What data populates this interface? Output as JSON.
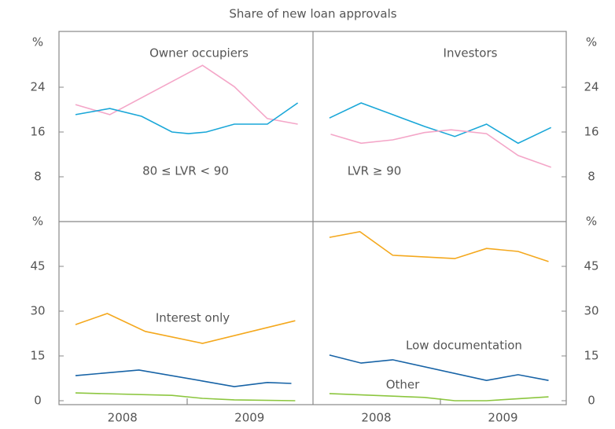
{
  "title": "Share of new loan approvals",
  "chart_data": [
    {
      "type": "line",
      "ylabel": "%",
      "annotations": [
        "Owner occupiers",
        "80 ≤ LVR < 90"
      ],
      "xlim": [
        2008,
        2010
      ],
      "xticks": [],
      "ylim": [
        0,
        32
      ],
      "yticks": [
        8,
        16,
        24
      ],
      "series": [
        {
          "color": "#f4a6c8",
          "x": [
            2008.13,
            2008.4,
            2009.13,
            2009.38,
            2009.64,
            2009.88
          ],
          "values": [
            20.9,
            19.1,
            27.9,
            24.1,
            18.4,
            17.4
          ]
        },
        {
          "color": "#1aa7d8",
          "x": [
            2008.13,
            2008.4,
            2008.65,
            2008.89,
            2009.02,
            2009.16,
            2009.38,
            2009.64,
            2009.88
          ],
          "values": [
            19.1,
            20.2,
            18.8,
            16,
            15.7,
            16,
            17.4,
            17.4,
            21.2
          ]
        }
      ]
    },
    {
      "type": "line",
      "ylabel": "%",
      "annotations": [
        "Investors",
        "LVR ≥ 90"
      ],
      "xlim": [
        2008,
        2010
      ],
      "xticks": [],
      "ylim": [
        0,
        32
      ],
      "yticks": [
        8,
        16,
        24
      ],
      "series": [
        {
          "color": "#1aa7d8",
          "x": [
            2008.13,
            2008.38,
            2008.63,
            2008.88,
            2009.12,
            2009.37,
            2009.62,
            2009.88
          ],
          "values": [
            18.5,
            21.2,
            19.1,
            17,
            15.2,
            17.4,
            14,
            16.8
          ]
        },
        {
          "color": "#f4a6c8",
          "x": [
            2008.14,
            2008.38,
            2008.63,
            2008.88,
            2009.09,
            2009.37,
            2009.62,
            2009.88
          ],
          "values": [
            15.6,
            14,
            14.6,
            15.9,
            16.4,
            15.7,
            11.8,
            9.7
          ]
        }
      ]
    },
    {
      "type": "line",
      "ylabel": "%",
      "annotations": [
        "Interest only"
      ],
      "xlim": [
        2008,
        2010
      ],
      "xticks": [
        {
          "value": 2008.5,
          "label": "2008"
        },
        {
          "value": 2009.5,
          "label": "2009"
        }
      ],
      "ylim": [
        0,
        60
      ],
      "yticks": [
        0,
        15,
        30,
        45
      ],
      "series": [
        {
          "color": "#f4a81d",
          "x": [
            2008.13,
            2008.38,
            2008.68,
            2009.13,
            2009.86
          ],
          "values": [
            25.5,
            29.2,
            23.2,
            19.2,
            26.8
          ]
        },
        {
          "color": "#1763a6",
          "x": [
            2008.13,
            2008.63,
            2009.13,
            2009.38,
            2009.64,
            2009.83
          ],
          "values": [
            8.4,
            10.3,
            6.6,
            4.7,
            6.1,
            5.8
          ]
        },
        {
          "color": "#8cc63f",
          "x": [
            2008.13,
            2008.89,
            2009.13,
            2009.38,
            2009.86
          ],
          "values": [
            2.6,
            1.8,
            0.8,
            0.3,
            0
          ]
        }
      ]
    },
    {
      "type": "line",
      "ylabel": "%",
      "annotations": [
        "Low documentation",
        "Other"
      ],
      "xlim": [
        2008,
        2010
      ],
      "xticks": [
        {
          "value": 2008.5,
          "label": "2008"
        },
        {
          "value": 2009.5,
          "label": "2009"
        }
      ],
      "ylim": [
        0,
        60
      ],
      "yticks": [
        0,
        15,
        30,
        45
      ],
      "series": [
        {
          "color": "#f4a81d",
          "x": [
            2008.13,
            2008.37,
            2008.63,
            2009.12,
            2009.37,
            2009.62,
            2009.86
          ],
          "values": [
            54.7,
            56.6,
            48.7,
            47.6,
            51,
            50,
            46.6
          ]
        },
        {
          "color": "#1763a6",
          "x": [
            2008.13,
            2008.38,
            2008.63,
            2009.37,
            2009.62,
            2009.86
          ],
          "values": [
            15.3,
            12.6,
            13.7,
            6.8,
            8.7,
            6.8
          ]
        },
        {
          "color": "#8cc63f",
          "x": [
            2008.13,
            2008.88,
            2009.12,
            2009.37,
            2009.86
          ],
          "values": [
            2.4,
            1.1,
            0,
            0,
            1.3
          ]
        }
      ]
    }
  ]
}
